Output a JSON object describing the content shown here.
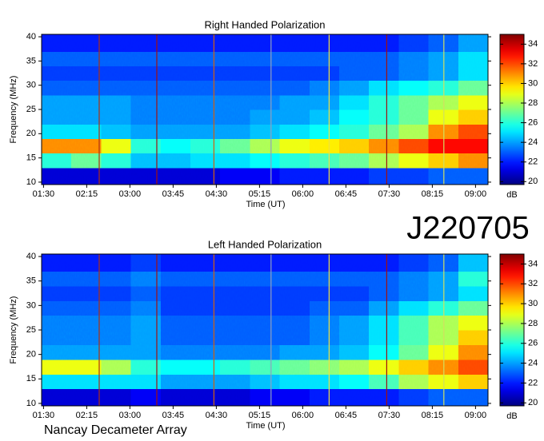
{
  "observation_id": "J220705",
  "instrument": "Nancay Decameter Array",
  "chart_data": [
    {
      "type": "heatmap",
      "title": "Right Handed Polarization",
      "xlabel": "Time (UT)",
      "ylabel": "Frequency (MHz)",
      "colormap": "jet",
      "xlim": [
        88,
        553
      ],
      "ylim": [
        9.5,
        40.5
      ],
      "xticks": [
        {
          "value": 90,
          "label": "01:30"
        },
        {
          "value": 135,
          "label": "02:15"
        },
        {
          "value": 180,
          "label": "03:00"
        },
        {
          "value": 225,
          "label": "03:45"
        },
        {
          "value": 270,
          "label": "04:30"
        },
        {
          "value": 315,
          "label": "05:15"
        },
        {
          "value": 360,
          "label": "06:00"
        },
        {
          "value": 405,
          "label": "06:45"
        },
        {
          "value": 450,
          "label": "07:30"
        },
        {
          "value": 495,
          "label": "08:15"
        },
        {
          "value": 540,
          "label": "09:00"
        }
      ],
      "yticks": [
        10,
        15,
        20,
        25,
        30,
        35,
        40
      ],
      "x_bins": [
        88,
        119,
        150,
        181,
        212,
        243,
        274,
        305,
        336,
        367,
        398,
        429,
        460,
        491,
        522,
        553
      ],
      "y_bins": [
        9.5,
        13,
        16,
        19,
        22,
        25,
        28,
        31,
        34,
        37,
        40.5
      ],
      "z": [
        [
          21,
          21,
          21,
          21,
          21,
          21,
          21.5,
          21.5,
          22,
          22,
          22,
          22.5,
          22.5,
          23,
          23
        ],
        [
          26,
          27,
          26,
          24.5,
          24.5,
          25,
          25,
          25.5,
          26,
          26.5,
          27,
          28,
          29,
          30,
          31
        ],
        [
          31,
          31,
          29,
          26,
          25.5,
          26,
          27,
          28,
          29,
          29.5,
          30,
          31,
          32,
          33,
          33
        ],
        [
          25,
          25,
          24.5,
          24,
          24,
          24,
          24,
          24.5,
          25,
          25.5,
          26,
          27,
          28,
          31,
          32
        ],
        [
          24,
          24,
          24,
          23.5,
          23.5,
          23.5,
          23.5,
          24,
          24,
          24.5,
          25.5,
          26,
          27,
          29,
          30
        ],
        [
          24,
          24,
          24,
          23.5,
          23.5,
          23.5,
          23.5,
          23.5,
          24,
          24,
          25,
          26,
          27,
          28,
          29
        ],
        [
          23,
          23,
          23,
          23,
          23,
          23,
          23,
          23,
          23,
          23.5,
          24,
          25,
          25.5,
          26,
          27
        ],
        [
          22.5,
          22.5,
          22.5,
          22.5,
          22.5,
          22.5,
          22.5,
          22.5,
          22.5,
          22.5,
          23,
          23,
          23.5,
          24,
          25
        ],
        [
          23,
          23,
          23,
          23,
          23,
          23,
          23,
          23,
          23,
          23,
          23,
          23,
          23.5,
          24,
          25
        ],
        [
          22,
          22,
          22,
          22,
          22,
          22,
          22,
          22,
          22,
          22,
          22,
          22,
          22.5,
          23,
          24
        ]
      ],
      "vlines": [
        {
          "x": 148,
          "color": "#b03010"
        },
        {
          "x": 208,
          "color": "#a01010"
        },
        {
          "x": 267.5,
          "color": "#d06010"
        },
        {
          "x": 327,
          "color": "#90a0c0"
        },
        {
          "x": 387.5,
          "color": "#f0e040"
        },
        {
          "x": 447.5,
          "color": "#a01010"
        },
        {
          "x": 507,
          "color": "#d0e060"
        }
      ],
      "colorbar": {
        "label": "dB",
        "lim": [
          19.7,
          35
        ],
        "ticks": [
          20,
          22,
          24,
          26,
          28,
          30,
          32,
          34
        ]
      }
    },
    {
      "type": "heatmap",
      "title": "Left Handed Polarization",
      "xlabel": "Time (UT)",
      "ylabel": "Frequency (MHz)",
      "colormap": "jet",
      "xlim": [
        88,
        553
      ],
      "ylim": [
        9.5,
        40.5
      ],
      "xticks": [
        {
          "value": 90,
          "label": "01:30"
        },
        {
          "value": 135,
          "label": "02:15"
        },
        {
          "value": 180,
          "label": "03:00"
        },
        {
          "value": 225,
          "label": "03:45"
        },
        {
          "value": 270,
          "label": "04:30"
        },
        {
          "value": 315,
          "label": "05:15"
        },
        {
          "value": 360,
          "label": "06:00"
        },
        {
          "value": 405,
          "label": "06:45"
        },
        {
          "value": 450,
          "label": "07:30"
        },
        {
          "value": 495,
          "label": "08:15"
        },
        {
          "value": 540,
          "label": "09:00"
        }
      ],
      "yticks": [
        10,
        15,
        20,
        25,
        30,
        35,
        40
      ],
      "x_bins": [
        88,
        119,
        150,
        181,
        212,
        243,
        274,
        305,
        336,
        367,
        398,
        429,
        460,
        491,
        522,
        553
      ],
      "y_bins": [
        9.5,
        13,
        16,
        19,
        22,
        25,
        28,
        31,
        34,
        37,
        40.5
      ],
      "z": [
        [
          21,
          21,
          21,
          21.5,
          21,
          21,
          21,
          21.5,
          21.5,
          22,
          22,
          22,
          22.5,
          23,
          23
        ],
        [
          25,
          25,
          25,
          25,
          24,
          24,
          24,
          24.5,
          25,
          25,
          25.5,
          26.5,
          28,
          29,
          30
        ],
        [
          29,
          29,
          28,
          26,
          25.5,
          25.5,
          26,
          26.5,
          27,
          27.5,
          28,
          29,
          30,
          31,
          32
        ],
        [
          24,
          24,
          24,
          24,
          23.5,
          23.5,
          23.5,
          23.5,
          24,
          24,
          24.5,
          25.5,
          27,
          29,
          31
        ],
        [
          23.5,
          23.5,
          23.5,
          24,
          23,
          23,
          23,
          23,
          23,
          23.5,
          24,
          25,
          26.5,
          28,
          30
        ],
        [
          23.5,
          23.5,
          23.5,
          24,
          23,
          23,
          23,
          23,
          23,
          23.5,
          24,
          25,
          26.5,
          28,
          29
        ],
        [
          23,
          23,
          23,
          23.5,
          22.5,
          22.5,
          22.5,
          22.5,
          22.5,
          23,
          23,
          24,
          25,
          26,
          27
        ],
        [
          22.5,
          22.5,
          22.5,
          23,
          22.5,
          22.5,
          22.5,
          22.5,
          22.5,
          22.5,
          22.5,
          23,
          23.5,
          24,
          25
        ],
        [
          23,
          23,
          23,
          23.5,
          23,
          23,
          23,
          23,
          23,
          23,
          23,
          23,
          23.5,
          24,
          26
        ],
        [
          22,
          22,
          22,
          22.5,
          22,
          22,
          22,
          22,
          22,
          22,
          22,
          22,
          22.5,
          23,
          24.5
        ]
      ],
      "vlines": [
        {
          "x": 148,
          "color": "#b03010"
        },
        {
          "x": 208,
          "color": "#a01010"
        },
        {
          "x": 267.5,
          "color": "#d06010"
        },
        {
          "x": 327,
          "color": "#90a0c0"
        },
        {
          "x": 387.5,
          "color": "#f0e040"
        },
        {
          "x": 447.5,
          "color": "#a01010"
        },
        {
          "x": 507,
          "color": "#d0e060"
        }
      ],
      "colorbar": {
        "label": "dB",
        "lim": [
          19.7,
          35
        ],
        "ticks": [
          20,
          22,
          24,
          26,
          28,
          30,
          32,
          34
        ]
      }
    }
  ]
}
